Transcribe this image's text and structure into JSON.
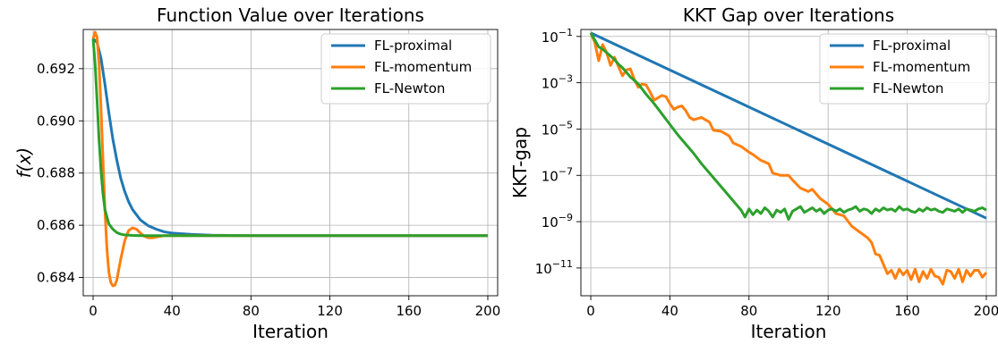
{
  "chart_data": [
    {
      "type": "line",
      "title": "Function Value over Iterations",
      "xlabel": "Iteration",
      "ylabel": "f(x)",
      "xlim": [
        -5,
        205
      ],
      "ylim": [
        0.6833,
        0.6935
      ],
      "xticks": [
        0,
        40,
        80,
        120,
        160,
        200
      ],
      "xtick_labels": [
        "0",
        "40",
        "80",
        "120",
        "160",
        "200"
      ],
      "yticks": [
        0.684,
        0.686,
        0.688,
        0.69,
        0.692
      ],
      "ytick_labels": [
        "0.684",
        "0.686",
        "0.688",
        "0.690",
        "0.692"
      ],
      "grid": true,
      "legend_position": "top-right",
      "series": [
        {
          "name": "FL-proximal",
          "color": "#1f77b4",
          "x": [
            0,
            2,
            4,
            6,
            8,
            10,
            12,
            14,
            16,
            18,
            20,
            24,
            28,
            32,
            36,
            40,
            50,
            60,
            80,
            100,
            120,
            160,
            200
          ],
          "y": [
            0.69315,
            0.693,
            0.6924,
            0.6914,
            0.6903,
            0.6893,
            0.6885,
            0.6878,
            0.6873,
            0.6869,
            0.6866,
            0.6862,
            0.68598,
            0.68585,
            0.68575,
            0.6857,
            0.68565,
            0.68562,
            0.6856,
            0.6856,
            0.6856,
            0.6856,
            0.6856
          ]
        },
        {
          "name": "FL-momentum",
          "color": "#ff7f0e",
          "x": [
            0,
            1,
            2,
            3,
            4,
            5,
            6,
            7,
            8,
            9,
            10,
            11,
            12,
            14,
            16,
            18,
            20,
            22,
            24,
            26,
            28,
            30,
            32,
            36,
            40,
            60,
            80,
            120,
            160,
            200
          ],
          "y": [
            0.69315,
            0.6934,
            0.6932,
            0.6922,
            0.6905,
            0.6885,
            0.6866,
            0.6851,
            0.6842,
            0.6838,
            0.68368,
            0.6837,
            0.6839,
            0.6847,
            0.6854,
            0.6858,
            0.6859,
            0.68585,
            0.6857,
            0.68558,
            0.68552,
            0.68552,
            0.68555,
            0.6856,
            0.6856,
            0.6856,
            0.6856,
            0.6856,
            0.6856,
            0.6856
          ]
        },
        {
          "name": "FL-Newton",
          "color": "#2ca02c",
          "x": [
            0,
            1,
            2,
            3,
            4,
            5,
            6,
            8,
            10,
            12,
            14,
            16,
            20,
            24,
            30,
            40,
            60,
            80,
            120,
            160,
            200
          ],
          "y": [
            0.69315,
            0.6922,
            0.6908,
            0.6893,
            0.6881,
            0.6872,
            0.6866,
            0.68605,
            0.68585,
            0.68572,
            0.68566,
            0.68563,
            0.68561,
            0.6856,
            0.6856,
            0.6856,
            0.6856,
            0.6856,
            0.6856,
            0.6856,
            0.6856
          ]
        }
      ]
    },
    {
      "type": "line",
      "title": "KKT Gap over Iterations",
      "xlabel": "Iteration",
      "ylabel": "KKT-gap",
      "yscale": "log",
      "xlim": [
        -5,
        205
      ],
      "ylim_exp": [
        -12.2,
        -0.7
      ],
      "xticks": [
        0,
        40,
        80,
        120,
        160,
        200
      ],
      "xtick_labels": [
        "0",
        "40",
        "80",
        "120",
        "160",
        "200"
      ],
      "yticks": [
        {
          "base": "10",
          "exp": "−1"
        },
        {
          "base": "10",
          "exp": "−3"
        },
        {
          "base": "10",
          "exp": "−5"
        },
        {
          "base": "10",
          "exp": "−7"
        },
        {
          "base": "10",
          "exp": "−9"
        },
        {
          "base": "10",
          "exp": "−11"
        }
      ],
      "ytick_exps": [
        -1,
        -3,
        -5,
        -7,
        -9,
        -11
      ],
      "grid": true,
      "legend_position": "top-right",
      "series": [
        {
          "name": "FL-proximal",
          "color": "#1f77b4",
          "x": [
            0,
            200
          ],
          "log10_y": [
            -0.85,
            -8.85
          ]
        },
        {
          "name": "FL-momentum",
          "color": "#ff7f0e",
          "x": [
            0,
            2,
            4,
            6,
            8,
            10,
            12,
            14,
            16,
            18,
            20,
            22,
            24,
            26,
            28,
            30,
            32,
            34,
            36,
            38,
            40,
            42,
            44,
            46,
            48,
            50,
            52,
            56,
            60,
            62,
            66,
            70,
            72,
            76,
            80,
            82,
            86,
            90,
            92,
            96,
            100,
            102,
            106,
            110,
            112,
            116,
            120,
            124,
            128,
            132,
            136,
            140,
            142,
            144,
            146,
            148,
            150,
            152,
            154,
            156,
            158,
            160,
            162,
            164,
            166,
            168,
            170,
            172,
            174,
            176,
            178,
            180,
            182,
            184,
            186,
            188,
            190,
            192,
            194,
            196,
            198,
            200
          ],
          "log10_y": [
            -0.85,
            -1.25,
            -2.05,
            -1.35,
            -1.7,
            -2.25,
            -1.9,
            -2.3,
            -2.7,
            -2.45,
            -2.4,
            -2.85,
            -3.2,
            -3.05,
            -3.1,
            -3.4,
            -3.75,
            -3.65,
            -3.55,
            -3.6,
            -3.9,
            -4.15,
            -4.05,
            -4.0,
            -4.2,
            -4.5,
            -4.6,
            -4.5,
            -4.7,
            -5.05,
            -5.1,
            -5.3,
            -5.6,
            -5.75,
            -6.0,
            -6.1,
            -6.35,
            -6.5,
            -6.9,
            -7.0,
            -7.0,
            -7.2,
            -7.55,
            -7.7,
            -7.6,
            -8.0,
            -8.25,
            -8.65,
            -8.75,
            -9.2,
            -9.45,
            -9.7,
            -9.9,
            -10.4,
            -10.45,
            -10.85,
            -11.25,
            -11.1,
            -11.45,
            -11.05,
            -11.3,
            -11.1,
            -11.5,
            -11.05,
            -11.6,
            -11.15,
            -11.45,
            -11.05,
            -11.35,
            -11.4,
            -11.7,
            -11.1,
            -11.15,
            -11.45,
            -11.05,
            -11.6,
            -11.1,
            -11.35,
            -11.1,
            -11.1,
            -11.4,
            -11.2
          ]
        },
        {
          "name": "FL-Newton",
          "color": "#2ca02c",
          "x": [
            0,
            2,
            4,
            6,
            8,
            10,
            12,
            14,
            16,
            18,
            20,
            24,
            28,
            32,
            36,
            40,
            44,
            48,
            52,
            56,
            60,
            64,
            68,
            72,
            74,
            76,
            78,
            80,
            82,
            84,
            86,
            88,
            90,
            92,
            94,
            96,
            98,
            100,
            102,
            104,
            106,
            108,
            110,
            112,
            114,
            116,
            118,
            120,
            122,
            124,
            126,
            128,
            130,
            132,
            134,
            136,
            138,
            140,
            142,
            144,
            146,
            148,
            150,
            152,
            154,
            156,
            158,
            160,
            162,
            164,
            166,
            168,
            170,
            172,
            174,
            176,
            178,
            180,
            182,
            184,
            186,
            188,
            190,
            192,
            194,
            196,
            198,
            200
          ],
          "log10_y": [
            -0.85,
            -1.15,
            -1.45,
            -1.55,
            -1.7,
            -1.85,
            -2.0,
            -2.2,
            -2.35,
            -2.55,
            -2.75,
            -3.05,
            -3.5,
            -3.9,
            -4.35,
            -4.8,
            -5.25,
            -5.65,
            -6.05,
            -6.5,
            -6.9,
            -7.3,
            -7.7,
            -8.1,
            -8.3,
            -8.5,
            -8.8,
            -8.45,
            -8.7,
            -8.5,
            -8.65,
            -8.4,
            -8.55,
            -8.8,
            -8.5,
            -8.6,
            -8.45,
            -8.9,
            -8.55,
            -8.45,
            -8.35,
            -8.6,
            -8.5,
            -8.4,
            -8.55,
            -8.45,
            -8.65,
            -8.5,
            -8.45,
            -8.55,
            -8.45,
            -8.6,
            -8.5,
            -8.45,
            -8.35,
            -8.55,
            -8.45,
            -8.5,
            -8.65,
            -8.45,
            -8.55,
            -8.4,
            -8.5,
            -8.45,
            -8.55,
            -8.35,
            -8.5,
            -8.45,
            -8.55,
            -8.6,
            -8.45,
            -8.55,
            -8.4,
            -8.5,
            -8.45,
            -8.55,
            -8.6,
            -8.45,
            -8.5,
            -8.55,
            -8.45,
            -8.6,
            -8.45,
            -8.5,
            -8.55,
            -8.45,
            -8.4,
            -8.5
          ]
        }
      ]
    }
  ]
}
